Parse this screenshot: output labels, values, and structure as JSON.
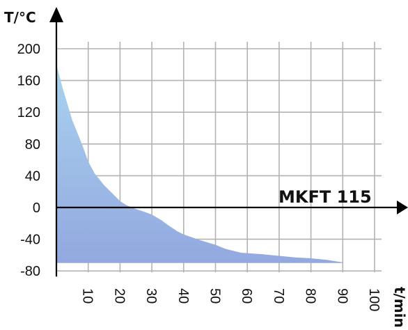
{
  "chart_data": {
    "type": "area",
    "title": "",
    "xlabel": "t/min",
    "ylabel": "T/°C",
    "annotation": "MKFT 115",
    "x_ticks": [
      "10",
      "20",
      "30",
      "40",
      "50",
      "60",
      "70",
      "80",
      "90",
      "100"
    ],
    "y_ticks": [
      "200",
      "160",
      "120",
      "80",
      "40",
      "0",
      "-40",
      "-80"
    ],
    "xlim": [
      0,
      100
    ],
    "ylim": [
      -80,
      200
    ],
    "grid": true,
    "fill_colors": {
      "top": "#a9d3ef",
      "bottom": "#93a8df"
    },
    "series": [
      {
        "x": [
          0,
          2,
          5,
          8,
          10,
          12,
          15,
          18,
          20,
          22,
          25,
          28,
          30,
          33,
          35,
          38,
          40,
          45,
          50,
          53,
          56,
          58,
          60,
          65,
          70,
          75,
          80,
          85,
          88,
          90
        ],
        "y": [
          180,
          150,
          110,
          80,
          58,
          43,
          28,
          16,
          8,
          3,
          -2,
          -6,
          -9,
          -16,
          -22,
          -30,
          -34,
          -41,
          -47,
          -52,
          -55,
          -57,
          -57.5,
          -59,
          -61,
          -63,
          -64,
          -66,
          -68,
          -69
        ],
        "lower": -70
      }
    ]
  }
}
